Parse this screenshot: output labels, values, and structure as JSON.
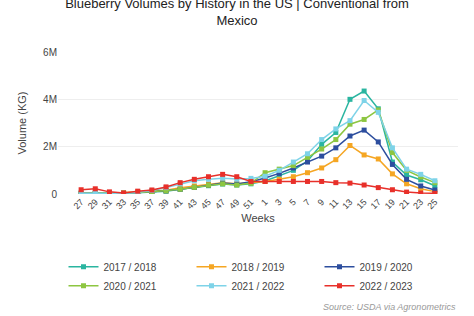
{
  "chart_data": {
    "type": "line",
    "title": "Blueberry Volumes by History in the US | Conventional from\nMexico",
    "x_label": "Weeks",
    "y_label": "Volume (KG)",
    "annotations": [
      "Source: USDA via Agronometrics"
    ],
    "categories": [
      "27",
      "29",
      "31",
      "33",
      "35",
      "37",
      "39",
      "41",
      "43",
      "45",
      "47",
      "49",
      "51",
      "1",
      "3",
      "5",
      "7",
      "9",
      "11",
      "13",
      "15",
      "17",
      "19",
      "21",
      "23",
      "25"
    ],
    "series": [
      {
        "name": "2017 / 2018",
        "color": "#2ab5a0",
        "marker": "square",
        "values": [
          30000,
          30000,
          30000,
          30000,
          50000,
          80000,
          120000,
          200000,
          280000,
          350000,
          420000,
          380000,
          430000,
          550000,
          780000,
          1000000,
          1400000,
          2100000,
          2600000,
          4000000,
          4350000,
          3600000,
          1350000,
          800000,
          600000,
          350000
        ]
      },
      {
        "name": "2018 / 2019",
        "color": "#f5a623",
        "marker": "square",
        "values": [
          30000,
          30000,
          30000,
          60000,
          90000,
          120000,
          160000,
          260000,
          340000,
          420000,
          480000,
          430000,
          470000,
          530000,
          620000,
          730000,
          900000,
          1100000,
          1450000,
          2050000,
          1650000,
          1480000,
          850000,
          430000,
          220000,
          100000
        ]
      },
      {
        "name": "2019 / 2020",
        "color": "#2d4e9e",
        "marker": "square",
        "values": [
          30000,
          30000,
          30000,
          30000,
          60000,
          90000,
          130000,
          200000,
          280000,
          370000,
          460000,
          420000,
          520000,
          680000,
          870000,
          1100000,
          1350000,
          1600000,
          1950000,
          2450000,
          2700000,
          2200000,
          1250000,
          620000,
          340000,
          170000
        ]
      },
      {
        "name": "2020 / 2021",
        "color": "#8dc641",
        "marker": "square",
        "values": [
          30000,
          30000,
          30000,
          30000,
          60000,
          90000,
          130000,
          200000,
          280000,
          370000,
          430000,
          380000,
          460000,
          900000,
          1050000,
          1200000,
          1550000,
          1900000,
          2300000,
          2950000,
          3150000,
          3550000,
          1750000,
          1000000,
          720000,
          480000
        ]
      },
      {
        "name": "2021 / 2022",
        "color": "#7ed3e8",
        "marker": "square",
        "values": [
          30000,
          30000,
          30000,
          30000,
          70000,
          150000,
          270000,
          430000,
          560000,
          620000,
          670000,
          630000,
          660000,
          750000,
          1000000,
          1350000,
          1700000,
          2300000,
          2750000,
          3100000,
          3950000,
          3450000,
          1950000,
          1050000,
          830000,
          560000
        ]
      },
      {
        "name": "2022 / 2023",
        "color": "#e8302a",
        "marker": "square",
        "values": [
          180000,
          220000,
          90000,
          40000,
          120000,
          170000,
          300000,
          480000,
          620000,
          730000,
          830000,
          730000,
          530000,
          530000,
          530000,
          530000,
          530000,
          530000,
          480000,
          460000,
          380000,
          270000,
          180000,
          80000,
          40000,
          30000
        ]
      }
    ],
    "ylim": [
      0,
      6000000
    ],
    "yticks": [
      0,
      {
        "value": 2000000,
        "label": "2M"
      },
      {
        "value": 4000000,
        "label": "4M"
      },
      {
        "value": 6000000,
        "label": "6M"
      }
    ],
    "grid": true,
    "legend": "bottom"
  }
}
